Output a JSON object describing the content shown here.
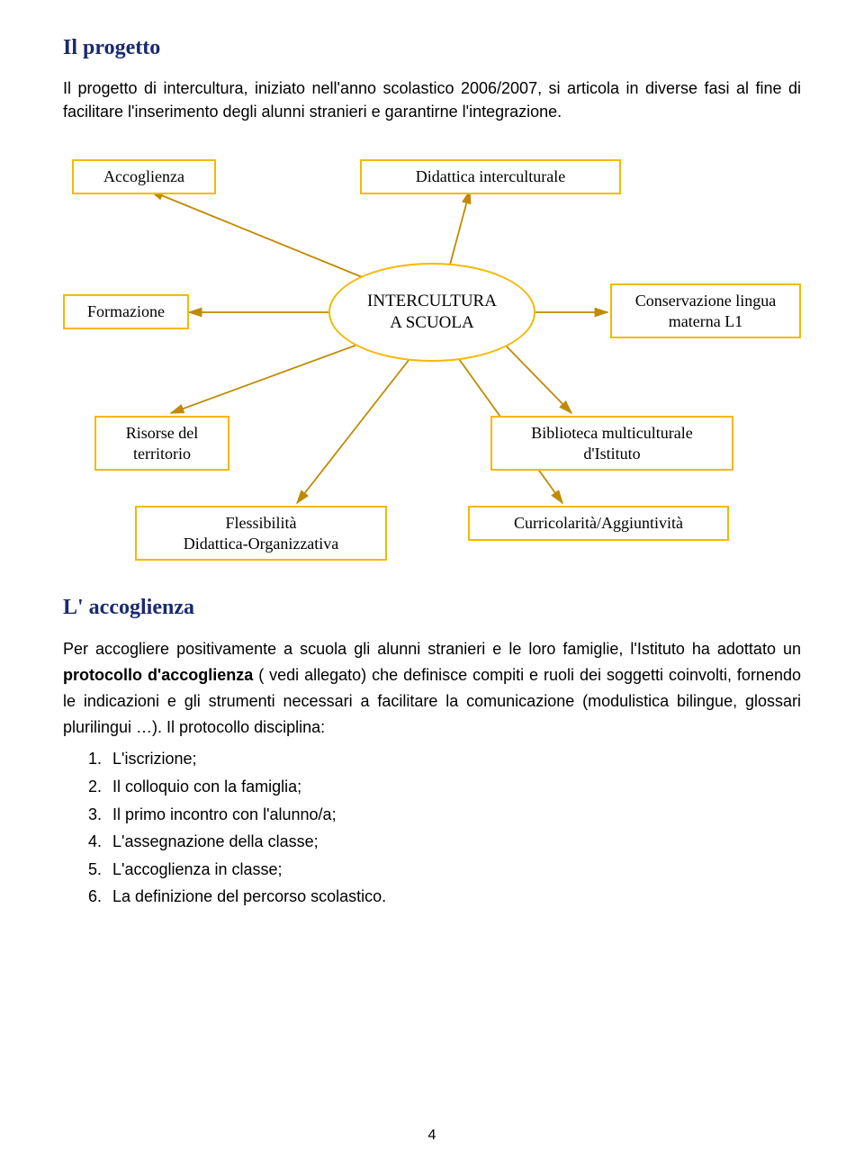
{
  "title": "Il progetto",
  "intro": "Il  progetto di intercultura, iniziato nell'anno scolastico 2006/2007,  si articola in diverse fasi al fine di facilitare l'inserimento degli alunni stranieri e garantirne l'integrazione.",
  "diagram": {
    "border_color": "#f5b800",
    "background_color": "#ffffff",
    "font_family": "Comic Sans MS",
    "text_color": "#000000",
    "arrow_color": "#c08a00",
    "center": {
      "label_line1": "INTERCULTURA",
      "label_line2": "A SCUOLA"
    },
    "nodes": {
      "accoglienza": "Accoglienza",
      "didattica_interculturale": "Didattica interculturale",
      "formazione": "Formazione",
      "conservazione": "Conservazione lingua\nmaterna L1",
      "risorse": "Risorse del\nterritorio",
      "biblioteca": "Biblioteca multiculturale\nd'Istituto",
      "flessibilita": "Flessibilità\nDidattica-Organizzativa",
      "curricolarita": "Curricolarità/Aggiuntività"
    }
  },
  "section2_title": "L' accoglienza",
  "section2_body": "Per  accogliere positivamente a scuola gli alunni stranieri e le loro famiglie, l'Istituto ha adottato un <b>protocollo d'accoglienza</b> ( vedi allegato) che definisce compiti e ruoli dei soggetti coinvolti, fornendo le indicazioni e gli strumenti necessari a facilitare la comunicazione (modulistica bilingue, glossari plurilingui …). Il protocollo disciplina:",
  "protocol_items": [
    "L'iscrizione;",
    "Il colloquio con la famiglia;",
    "Il primo incontro con l'alunno/a;",
    "L'assegnazione della classe;",
    "L'accoglienza in classe;",
    "La definizione del percorso scolastico."
  ],
  "page_number": "4"
}
